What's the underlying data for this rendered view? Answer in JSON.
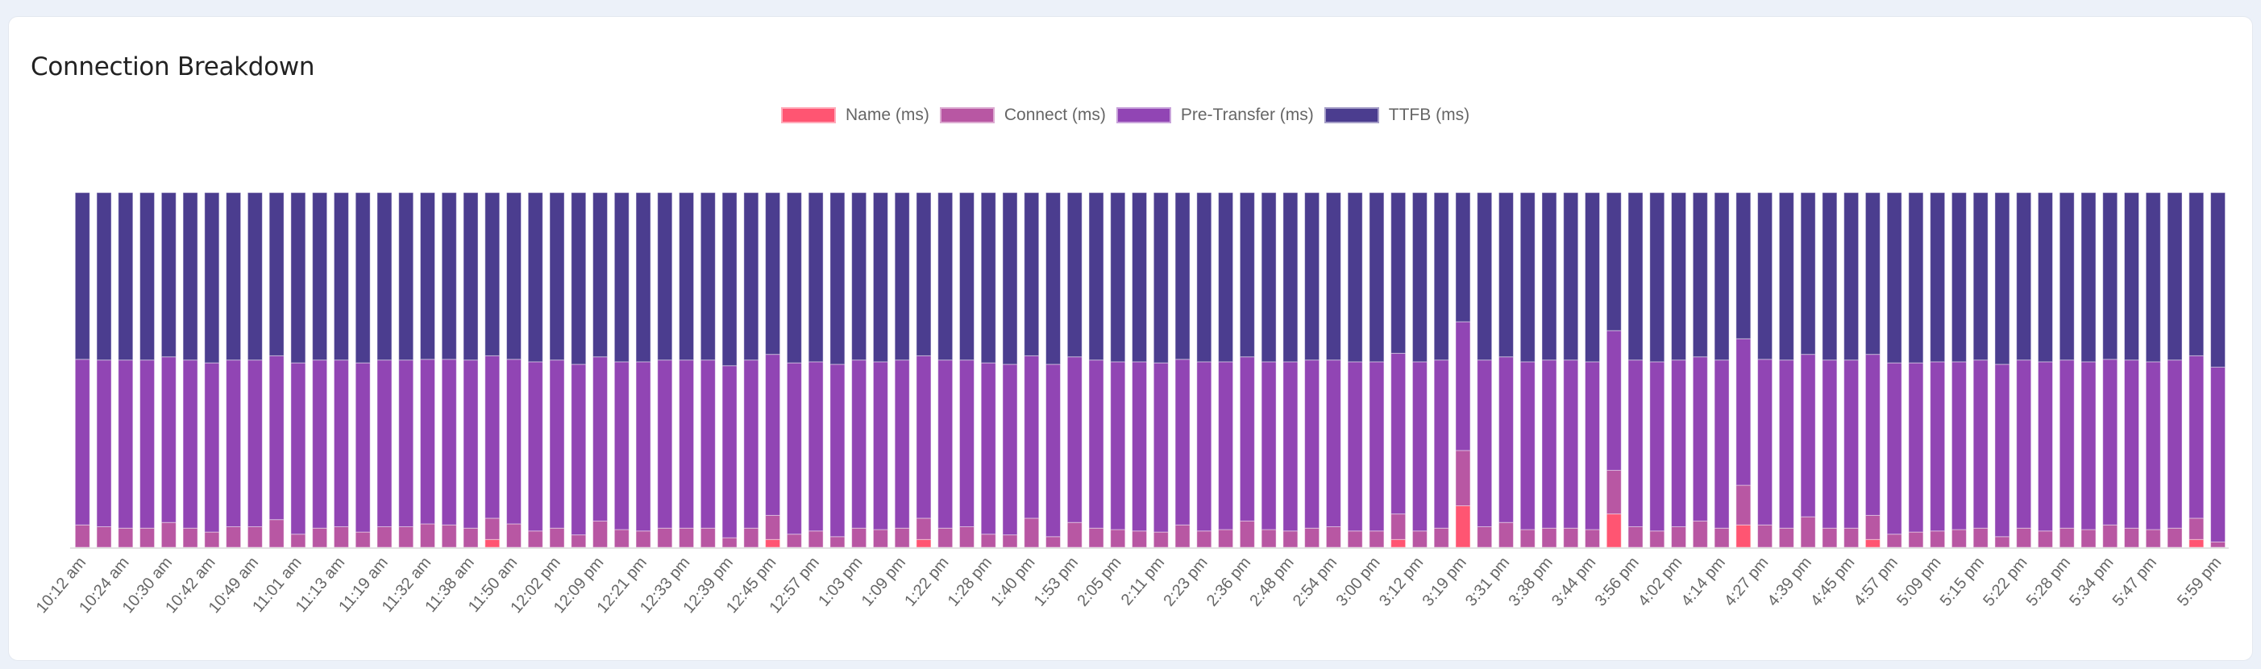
{
  "title": "Connection Breakdown",
  "chart_data": {
    "type": "bar",
    "stacked": true,
    "normalized_percent": true,
    "title": "Connection Breakdown",
    "legend_position": "top",
    "grid": false,
    "y_axis_visible": false,
    "series_order": [
      "Name (ms)",
      "Connect (ms)",
      "Pre-Transfer (ms)",
      "TTFB (ms)"
    ],
    "series": [
      {
        "name": "Name (ms)",
        "color": "#ff5572"
      },
      {
        "name": "Connect (ms)",
        "color": "#b857a3"
      },
      {
        "name": "Pre-Transfer (ms)",
        "color": "#9145b4"
      },
      {
        "name": "TTFB (ms)",
        "color": "#4b3d8f"
      }
    ],
    "x_tick_labels": [
      "10:12 am",
      "10:24 am",
      "10:30 am",
      "10:42 am",
      "10:49 am",
      "11:01 am",
      "11:13 am",
      "11:19 am",
      "11:32 am",
      "11:38 am",
      "11:50 am",
      "12:02 pm",
      "12:09 pm",
      "12:21 pm",
      "12:33 pm",
      "12:39 pm",
      "12:45 pm",
      "12:57 pm",
      "1:03 pm",
      "1:09 pm",
      "1:22 pm",
      "1:28 pm",
      "1:40 pm",
      "1:53 pm",
      "2:05 pm",
      "2:11 pm",
      "2:23 pm",
      "2:36 pm",
      "2:48 pm",
      "2:54 pm",
      "3:00 pm",
      "3:12 pm",
      "3:19 pm",
      "3:31 pm",
      "3:38 pm",
      "3:44 pm",
      "3:56 pm",
      "4:02 pm",
      "4:14 pm",
      "4:27 pm",
      "4:39 pm",
      "4:45 pm",
      "4:57 pm",
      "5:09 pm",
      "5:15 pm",
      "5:22 pm",
      "5:28 pm",
      "5:34 pm",
      "5:47 pm",
      "5:59 pm"
    ],
    "bars": [
      [
        0,
        6.3,
        46.7,
        47.0
      ],
      [
        0,
        5.8,
        47.0,
        47.2
      ],
      [
        0,
        5.4,
        47.4,
        47.2
      ],
      [
        0,
        5.4,
        47.4,
        47.2
      ],
      [
        0,
        7.0,
        46.7,
        46.3
      ],
      [
        0,
        5.4,
        47.4,
        47.2
      ],
      [
        0,
        4.3,
        47.7,
        48.0
      ],
      [
        0,
        5.8,
        47.0,
        47.2
      ],
      [
        0,
        5.8,
        47.0,
        47.2
      ],
      [
        0,
        7.8,
        46.2,
        46.0
      ],
      [
        0,
        3.7,
        48.3,
        48.0
      ],
      [
        0,
        5.4,
        47.4,
        47.2
      ],
      [
        0,
        5.8,
        47.0,
        47.2
      ],
      [
        0,
        4.3,
        47.7,
        48.0
      ],
      [
        0,
        5.8,
        47.0,
        47.2
      ],
      [
        0,
        5.8,
        47.0,
        47.2
      ],
      [
        0,
        6.6,
        46.4,
        47.0
      ],
      [
        0,
        6.3,
        46.7,
        47.0
      ],
      [
        0,
        5.4,
        47.4,
        47.2
      ],
      [
        2.2,
        6.0,
        45.8,
        46.0
      ],
      [
        0,
        6.6,
        46.4,
        47.0
      ],
      [
        0,
        4.6,
        47.7,
        47.7
      ],
      [
        0,
        5.4,
        47.4,
        47.2
      ],
      [
        0,
        3.5,
        48.1,
        48.4
      ],
      [
        0,
        7.4,
        46.3,
        46.3
      ],
      [
        0,
        5.0,
        47.3,
        47.7
      ],
      [
        0,
        4.6,
        47.7,
        47.7
      ],
      [
        0,
        5.4,
        47.4,
        47.2
      ],
      [
        0,
        5.4,
        47.4,
        47.2
      ],
      [
        0,
        5.4,
        47.4,
        47.2
      ],
      [
        0,
        2.7,
        48.5,
        48.8
      ],
      [
        0,
        5.4,
        47.4,
        47.2
      ],
      [
        2.2,
        6.8,
        45.4,
        45.6
      ],
      [
        0,
        3.7,
        48.3,
        48.0
      ],
      [
        0,
        4.6,
        47.7,
        47.7
      ],
      [
        0,
        3.0,
        48.6,
        48.4
      ],
      [
        0,
        5.4,
        47.4,
        47.2
      ],
      [
        0,
        5.0,
        47.3,
        47.7
      ],
      [
        0,
        5.4,
        47.4,
        47.2
      ],
      [
        2.2,
        6.0,
        45.8,
        46.0
      ],
      [
        0,
        5.4,
        47.4,
        47.2
      ],
      [
        0,
        5.8,
        47.0,
        47.2
      ],
      [
        0,
        3.7,
        48.3,
        48.0
      ],
      [
        0,
        3.5,
        48.1,
        48.4
      ],
      [
        0,
        8.2,
        45.8,
        46.0
      ],
      [
        0,
        3.0,
        48.6,
        48.4
      ],
      [
        0,
        7.0,
        46.7,
        46.3
      ],
      [
        0,
        5.4,
        47.4,
        47.2
      ],
      [
        0,
        5.0,
        47.3,
        47.7
      ],
      [
        0,
        4.6,
        47.7,
        47.7
      ],
      [
        0,
        4.3,
        47.7,
        48.0
      ],
      [
        0,
        6.3,
        46.7,
        47.0
      ],
      [
        0,
        4.6,
        47.7,
        47.7
      ],
      [
        0,
        5.0,
        47.3,
        47.7
      ],
      [
        0,
        7.4,
        46.3,
        46.3
      ],
      [
        0,
        5.0,
        47.3,
        47.7
      ],
      [
        0,
        4.6,
        47.7,
        47.7
      ],
      [
        0,
        5.4,
        47.4,
        47.2
      ],
      [
        0,
        5.8,
        47.0,
        47.2
      ],
      [
        0,
        4.6,
        47.7,
        47.7
      ],
      [
        0,
        4.6,
        47.7,
        47.7
      ],
      [
        2.2,
        7.2,
        45.3,
        45.3
      ],
      [
        0,
        4.6,
        47.7,
        47.7
      ],
      [
        0,
        5.4,
        47.4,
        47.2
      ],
      [
        11.7,
        15.6,
        36.3,
        36.4
      ],
      [
        0,
        5.8,
        47.0,
        47.2
      ],
      [
        0,
        7.0,
        46.7,
        46.3
      ],
      [
        0,
        5.0,
        47.3,
        47.7
      ],
      [
        0,
        5.4,
        47.4,
        47.2
      ],
      [
        0,
        5.4,
        47.4,
        47.2
      ],
      [
        0,
        5.0,
        47.3,
        47.7
      ],
      [
        9.4,
        12.3,
        39.4,
        38.9
      ],
      [
        0,
        5.8,
        47.0,
        47.2
      ],
      [
        0,
        4.6,
        47.7,
        47.7
      ],
      [
        0,
        5.8,
        47.0,
        47.2
      ],
      [
        0,
        7.4,
        46.3,
        46.3
      ],
      [
        0,
        5.4,
        47.4,
        47.2
      ],
      [
        6.3,
        11.2,
        41.3,
        41.2
      ],
      [
        0,
        6.3,
        46.7,
        47.0
      ],
      [
        0,
        5.4,
        47.4,
        47.2
      ],
      [
        0,
        8.6,
        45.8,
        45.6
      ],
      [
        0,
        5.4,
        47.4,
        47.2
      ],
      [
        0,
        5.4,
        47.4,
        47.2
      ],
      [
        2.2,
        6.8,
        45.4,
        45.6
      ],
      [
        0,
        3.7,
        48.3,
        48.0
      ],
      [
        0,
        4.3,
        47.7,
        48.0
      ],
      [
        0,
        4.6,
        47.7,
        47.7
      ],
      [
        0,
        5.0,
        47.3,
        47.7
      ],
      [
        0,
        5.4,
        47.4,
        47.2
      ],
      [
        0,
        3.0,
        48.6,
        48.4
      ],
      [
        0,
        5.4,
        47.4,
        47.2
      ],
      [
        0,
        4.6,
        47.7,
        47.7
      ],
      [
        0,
        5.4,
        47.4,
        47.2
      ],
      [
        0,
        5.0,
        47.3,
        47.7
      ],
      [
        0,
        6.3,
        46.7,
        47.0
      ],
      [
        0,
        5.4,
        47.4,
        47.2
      ],
      [
        0,
        5.0,
        47.3,
        47.7
      ],
      [
        0,
        5.4,
        47.4,
        47.2
      ],
      [
        2.2,
        6.0,
        45.8,
        46.0
      ],
      [
        0,
        1.5,
        49.3,
        49.2
      ]
    ]
  }
}
